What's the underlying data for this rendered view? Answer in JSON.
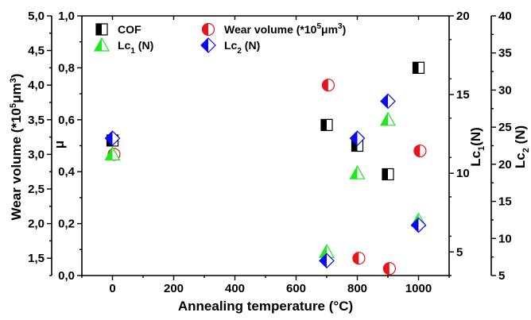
{
  "chart_data": {
    "type": "scatter",
    "title": "",
    "xlabel": "Annealing temperature (°C)",
    "xlim": [
      -100,
      1100
    ],
    "xticks": [
      0,
      200,
      400,
      600,
      800,
      1000
    ],
    "grid": false,
    "legend": {
      "placement": "top-left",
      "entries": [
        {
          "key": "cof",
          "label": "COF"
        },
        {
          "key": "wear",
          "label": "Wear volume (*10",
          "sup1": "5",
          "mid": "μm",
          "sup2": "3",
          "tail": ")"
        },
        {
          "key": "lc1",
          "label": "Lc",
          "sub": "1",
          "tail": " (N)"
        },
        {
          "key": "lc2",
          "label": "Lc",
          "sub": "2",
          "tail": " (N)"
        }
      ]
    },
    "axes": {
      "wear": {
        "position": "outer-left",
        "label": "Wear volume (*10",
        "label_sup1": "5",
        "label_mid": "μm",
        "label_sup2": "3",
        "label_tail": ")",
        "ylim": [
          1.25,
          5.0
        ],
        "ticks": [
          "1,5",
          "2,0",
          "2,5",
          "3,0",
          "3,5",
          "4,0",
          "4,5",
          "5,0"
        ],
        "tick_values": [
          1.5,
          2.0,
          2.5,
          3.0,
          3.5,
          4.0,
          4.5,
          5.0
        ]
      },
      "cof": {
        "position": "inner-left",
        "label": "μ",
        "ylim": [
          0,
          1.0
        ],
        "ticks": [
          "0,0",
          "0,2",
          "0,4",
          "0,6",
          "0,8",
          "1,0"
        ],
        "tick_values": [
          0.0,
          0.2,
          0.4,
          0.6,
          0.8,
          1.0
        ]
      },
      "lc1": {
        "position": "inner-right",
        "label": "Lc",
        "label_sub": "1",
        "label_tail": "(N)",
        "ylim": [
          3.5,
          20
        ],
        "ticks": [
          "5",
          "10",
          "15",
          "20"
        ],
        "tick_values": [
          5,
          10,
          15,
          20
        ]
      },
      "lc2": {
        "position": "outer-right",
        "label": "Lc",
        "label_sub": "2",
        "label_tail": " (N)",
        "ylim": [
          5,
          40
        ],
        "ticks": [
          "5",
          "10",
          "15",
          "20",
          "25",
          "30",
          "35",
          "40"
        ],
        "tick_values": [
          5,
          10,
          15,
          20,
          25,
          30,
          35,
          40
        ]
      }
    },
    "series": [
      {
        "key": "cof",
        "name": "COF",
        "axis": "cof",
        "marker": "half-square",
        "color": "#000000",
        "x": [
          0,
          700,
          800,
          900,
          1000
        ],
        "y": [
          0.52,
          0.58,
          0.5,
          0.39,
          0.8
        ]
      },
      {
        "key": "wear",
        "name": "Wear volume (*10^5μm^3)",
        "axis": "wear",
        "marker": "half-circle",
        "color": "#e8141c",
        "x": [
          5,
          705,
          805,
          905,
          1005
        ],
        "y": [
          3.0,
          4.0,
          1.5,
          1.35,
          3.05
        ]
      },
      {
        "key": "lc1",
        "name": "Lc1 (N)",
        "axis": "lc1",
        "marker": "half-triangle",
        "color": "#1ee81e",
        "x": [
          0,
          700,
          800,
          900,
          1000
        ],
        "y": [
          11.2,
          5.0,
          10.0,
          13.4,
          7.0
        ]
      },
      {
        "key": "lc2",
        "name": "Lc2 (N)",
        "axis": "lc2",
        "marker": "half-diamond",
        "color": "#0a0aee",
        "x": [
          0,
          700,
          800,
          900,
          1000
        ],
        "y": [
          23.5,
          7.0,
          23.5,
          28.5,
          11.8
        ]
      }
    ]
  }
}
